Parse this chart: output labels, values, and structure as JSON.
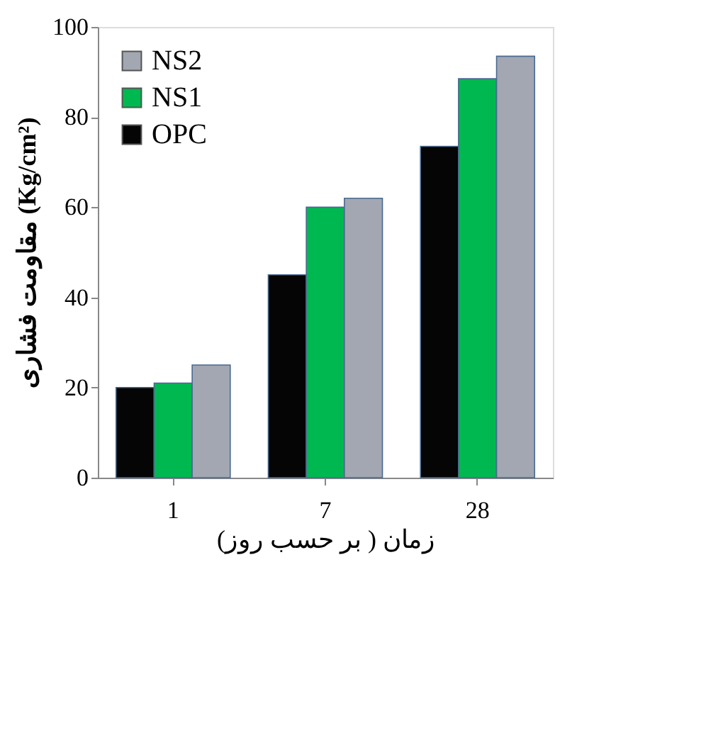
{
  "chart_data": {
    "type": "bar",
    "xlabel": "زمان ( بر حسب روز)",
    "ylabel": "مقاومت فشاری (Kg/cm²)",
    "categories": [
      "1",
      "7",
      "28"
    ],
    "series": [
      {
        "name": "OPC",
        "color": "#050505",
        "values": [
          20,
          45,
          73.5
        ]
      },
      {
        "name": "NS1",
        "color": "#00b850",
        "values": [
          21,
          60,
          88.5
        ]
      },
      {
        "name": "NS2",
        "color": "#a2a7b2",
        "values": [
          25,
          62,
          93.5
        ]
      }
    ],
    "ylim": [
      0,
      100
    ],
    "yticks": [
      0,
      20,
      40,
      60,
      80,
      100
    ],
    "legend": "top left"
  }
}
